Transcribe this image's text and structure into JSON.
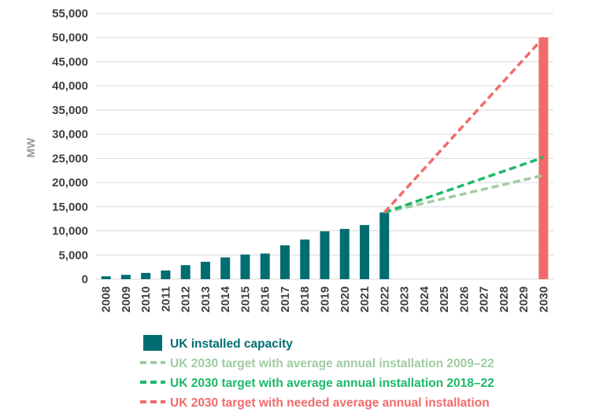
{
  "chart_data": {
    "type": "bar",
    "title": "",
    "xlabel": "",
    "ylabel": "MW",
    "ylim": [
      0,
      55000
    ],
    "yticks": [
      0,
      5000,
      10000,
      15000,
      20000,
      25000,
      30000,
      35000,
      40000,
      45000,
      50000,
      55000
    ],
    "ytick_labels": [
      "0",
      "5,000",
      "10,000",
      "15,000",
      "20,000",
      "25,000",
      "30,000",
      "35,000",
      "40,000",
      "45,000",
      "50,000",
      "55,000"
    ],
    "categories": [
      "2008",
      "2009",
      "2010",
      "2011",
      "2012",
      "2013",
      "2014",
      "2015",
      "2016",
      "2017",
      "2018",
      "2019",
      "2020",
      "2021",
      "2022",
      "2023",
      "2024",
      "2025",
      "2026",
      "2027",
      "2028",
      "2029",
      "2030"
    ],
    "series": [
      {
        "name": "UK installed capacity",
        "kind": "bar",
        "color": "#006d70",
        "values": [
          600,
          900,
          1300,
          1800,
          2900,
          3600,
          4500,
          5100,
          5300,
          7000,
          8200,
          9900,
          10400,
          11200,
          13800,
          null,
          null,
          null,
          null,
          null,
          null,
          null,
          null
        ]
      },
      {
        "name": "UK 2030 target with average annual installation 2009–22",
        "kind": "dashed-line",
        "color": "#9fcca0",
        "points": [
          [
            "2022",
            13800
          ],
          [
            "2030",
            21500
          ]
        ]
      },
      {
        "name": "UK 2030 target with average annual installation 2018–22",
        "kind": "dashed-line",
        "color": "#1db86a",
        "points": [
          [
            "2022",
            13800
          ],
          [
            "2030",
            25200
          ]
        ]
      },
      {
        "name": "UK 2030 target with needed average annual installation",
        "kind": "dashed-line",
        "color": "#f06b6b",
        "points": [
          [
            "2022",
            13800
          ],
          [
            "2030",
            50000
          ]
        ]
      },
      {
        "name": "2030 target",
        "kind": "target-bar",
        "color": "#f06b6b",
        "category": "2030",
        "value": 50000
      }
    ],
    "legend": {
      "placement": "bottom",
      "items": [
        {
          "label": "UK installed capacity",
          "type": "box",
          "color": "#006d70"
        },
        {
          "label": "UK 2030 target with average annual installation 2009–22",
          "type": "dash",
          "color": "#9fcca0"
        },
        {
          "label": "UK 2030 target with average annual installation 2018–22",
          "type": "dash",
          "color": "#1db86a"
        },
        {
          "label": "UK 2030 target with needed average annual installation",
          "type": "dash",
          "color": "#f06b6b"
        }
      ]
    },
    "grid": true
  }
}
